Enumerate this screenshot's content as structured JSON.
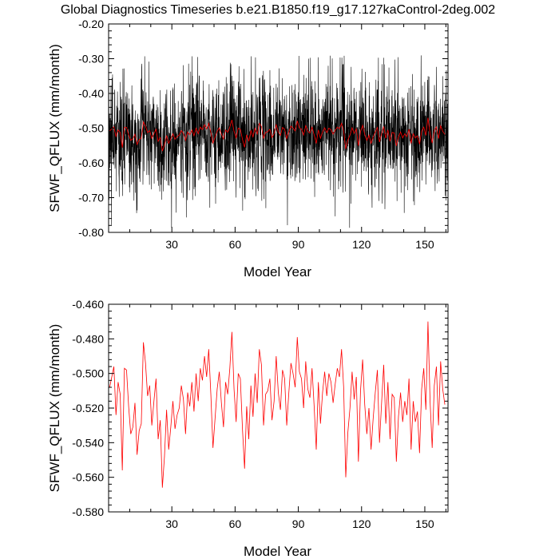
{
  "title": "Global Diagnostics Timeseries b.e21.B1850.f19_g17.127kaControl-2deg.002",
  "colors": {
    "monthly": "#000000",
    "annual": "#ff0000"
  },
  "chart_data": [
    {
      "type": "line",
      "panel": "top",
      "xlabel": "Model Year",
      "ylabel": "SFWF_QFLUX (mm/month)",
      "xlim": [
        0,
        161
      ],
      "ylim": [
        -0.8,
        -0.2
      ],
      "xticks": [
        30,
        60,
        90,
        120,
        150
      ],
      "xtick_labels": [
        "30",
        "60",
        "90",
        "120",
        "150"
      ],
      "yticks": [
        -0.8,
        -0.7,
        -0.6,
        -0.5,
        -0.4,
        -0.3,
        -0.2
      ],
      "ytick_labels": [
        "-0.80",
        "-0.70",
        "-0.60",
        "-0.50",
        "-0.40",
        "-0.30",
        "-0.20"
      ],
      "series": [
        {
          "name": "monthly",
          "color": "#000000",
          "kind": "monthly",
          "x_start": 0.04,
          "x_step": 0.0833,
          "mean": -0.52,
          "spread": 0.085,
          "min": -0.79,
          "max": -0.29,
          "n": 1932,
          "note": "monthly values oscillating roughly between -0.79 and -0.29 mm/month"
        },
        {
          "name": "annual mean",
          "color": "#ff0000",
          "kind": "annual",
          "ref": "annual_mean"
        }
      ]
    },
    {
      "type": "line",
      "panel": "bottom",
      "xlabel": "Model Year",
      "ylabel": "SFWF_QFLUX (mm/month)",
      "xlim": [
        0,
        161
      ],
      "ylim": [
        -0.58,
        -0.46
      ],
      "xticks": [
        30,
        60,
        90,
        120,
        150
      ],
      "xtick_labels": [
        "30",
        "60",
        "90",
        "120",
        "150"
      ],
      "yticks": [
        -0.58,
        -0.56,
        -0.54,
        -0.52,
        -0.5,
        -0.48,
        -0.46
      ],
      "ytick_labels": [
        "-0.580",
        "-0.560",
        "-0.540",
        "-0.520",
        "-0.500",
        "-0.480",
        "-0.460"
      ],
      "series": [
        {
          "name": "annual mean",
          "color": "#ff0000",
          "kind": "annual",
          "ref": "annual_mean"
        }
      ]
    }
  ],
  "annual_mean": {
    "x_start": 0.5,
    "x_step": 1,
    "values": [
      -0.508,
      -0.502,
      -0.496,
      -0.524,
      -0.505,
      -0.512,
      -0.556,
      -0.497,
      -0.498,
      -0.519,
      -0.535,
      -0.531,
      -0.517,
      -0.547,
      -0.533,
      -0.529,
      -0.482,
      -0.494,
      -0.513,
      -0.507,
      -0.53,
      -0.516,
      -0.503,
      -0.538,
      -0.527,
      -0.566,
      -0.548,
      -0.521,
      -0.544,
      -0.531,
      -0.516,
      -0.532,
      -0.524,
      -0.52,
      -0.507,
      -0.515,
      -0.535,
      -0.511,
      -0.519,
      -0.505,
      -0.522,
      -0.5,
      -0.516,
      -0.497,
      -0.504,
      -0.49,
      -0.502,
      -0.486,
      -0.512,
      -0.543,
      -0.526,
      -0.509,
      -0.499,
      -0.517,
      -0.531,
      -0.505,
      -0.512,
      -0.497,
      -0.476,
      -0.509,
      -0.528,
      -0.5,
      -0.503,
      -0.532,
      -0.555,
      -0.519,
      -0.538,
      -0.507,
      -0.525,
      -0.5,
      -0.517,
      -0.486,
      -0.495,
      -0.53,
      -0.512,
      -0.51,
      -0.503,
      -0.527,
      -0.516,
      -0.49,
      -0.511,
      -0.521,
      -0.498,
      -0.503,
      -0.53,
      -0.511,
      -0.494,
      -0.5,
      -0.508,
      -0.479,
      -0.499,
      -0.503,
      -0.52,
      -0.493,
      -0.509,
      -0.514,
      -0.497,
      -0.519,
      -0.544,
      -0.505,
      -0.529,
      -0.511,
      -0.499,
      -0.513,
      -0.5,
      -0.505,
      -0.517,
      -0.506,
      -0.497,
      -0.502,
      -0.486,
      -0.508,
      -0.56,
      -0.534,
      -0.52,
      -0.499,
      -0.515,
      -0.502,
      -0.551,
      -0.51,
      -0.492,
      -0.518,
      -0.535,
      -0.52,
      -0.544,
      -0.526,
      -0.511,
      -0.498,
      -0.54,
      -0.517,
      -0.495,
      -0.529,
      -0.505,
      -0.538,
      -0.512,
      -0.514,
      -0.551,
      -0.525,
      -0.511,
      -0.528,
      -0.516,
      -0.524,
      -0.503,
      -0.544,
      -0.516,
      -0.528,
      -0.522,
      -0.546,
      -0.509,
      -0.497,
      -0.521,
      -0.47,
      -0.516,
      -0.543,
      -0.507,
      -0.496,
      -0.53,
      -0.493,
      -0.509,
      -0.518
    ]
  }
}
